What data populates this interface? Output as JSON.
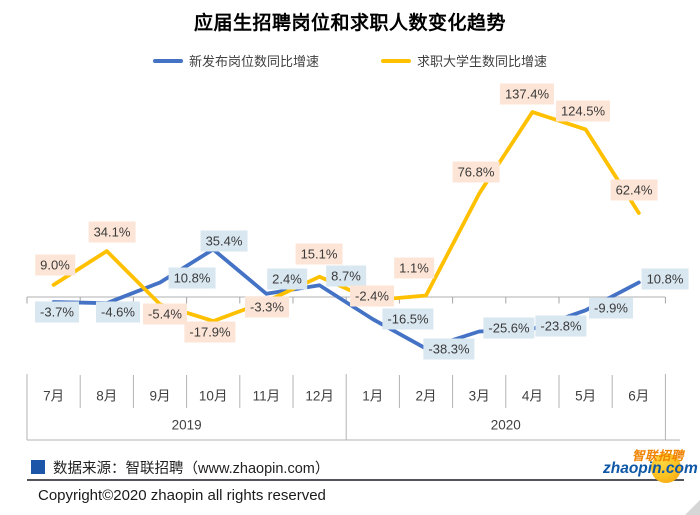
{
  "title": "应届生招聘岗位和求职人数变化趋势",
  "chart_data": {
    "type": "line",
    "categories": [
      "7月",
      "8月",
      "9月",
      "10月",
      "11月",
      "12月",
      "1月",
      "2月",
      "3月",
      "4月",
      "5月",
      "6月"
    ],
    "year_groups": [
      {
        "label": "2019",
        "months": 6
      },
      {
        "label": "2020",
        "months": 6
      }
    ],
    "series": [
      {
        "name": "新发布岗位数同比增速",
        "color": "#4472c4",
        "label_bg": "#d9e7f1",
        "values": [
          -3.7,
          -4.6,
          10.8,
          35.4,
          2.4,
          8.7,
          -16.5,
          -38.3,
          -25.6,
          -23.8,
          -9.9,
          10.8
        ]
      },
      {
        "name": "求职大学生数同比增速",
        "color": "#ffc000",
        "label_bg": "#fce5d6",
        "values": [
          9.0,
          34.1,
          -5.4,
          -17.9,
          -3.3,
          15.1,
          -2.4,
          1.1,
          76.8,
          137.4,
          124.5,
          62.4
        ]
      }
    ],
    "value_suffix": "%",
    "ylim": [
      -60,
      160
    ],
    "grid": false,
    "legend_position": "top",
    "data_labels": "all points, one decimal"
  },
  "footer": {
    "source_label": "数据来源：智联招聘（www.zhaopin.com）",
    "copyright": "Copyright©2020 zhaopin all rights reserved"
  },
  "logo": {
    "brand_cn": "智联招聘",
    "brand_domain": "zhaopin.com"
  },
  "icons": {
    "source_bullet": "blue-square",
    "logo_circle": "yellow-orange-ball",
    "corner_mark": "gray-corner-triangle"
  },
  "colors": {
    "axis_line": "#c0c0c0",
    "axis_tick": "#a6a6a6",
    "table_border": "#b3b3b3",
    "divider_rule": "#53535a",
    "source_bullet": "#1b56a8",
    "logo_blue": "#0d57a7",
    "logo_orange": "#f08300"
  }
}
